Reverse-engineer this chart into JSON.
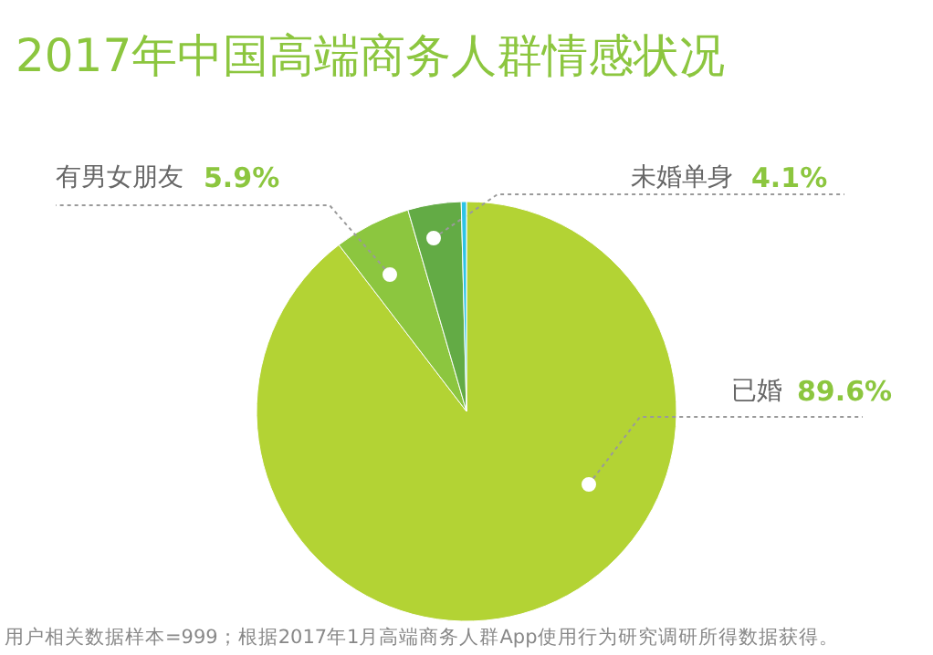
{
  "chart_data": {
    "type": "pie",
    "title": "2017年中国高端商务人群情感状况",
    "categories": [
      "已婚",
      "有男女朋友",
      "未婚单身",
      null
    ],
    "values": [
      89.6,
      5.9,
      4.1,
      0.4
    ],
    "value_labels": [
      "89.6%",
      "5.9%",
      "4.1%",
      null
    ],
    "colors": [
      "#b3d334",
      "#8cc63f",
      "#63ab45",
      "#2ec4e6"
    ],
    "legend": false,
    "annotations": [
      "用户相关数据样本=999；根据2017年1月高端商务人群App使用行为研究调研所得数据获得。"
    ]
  }
}
